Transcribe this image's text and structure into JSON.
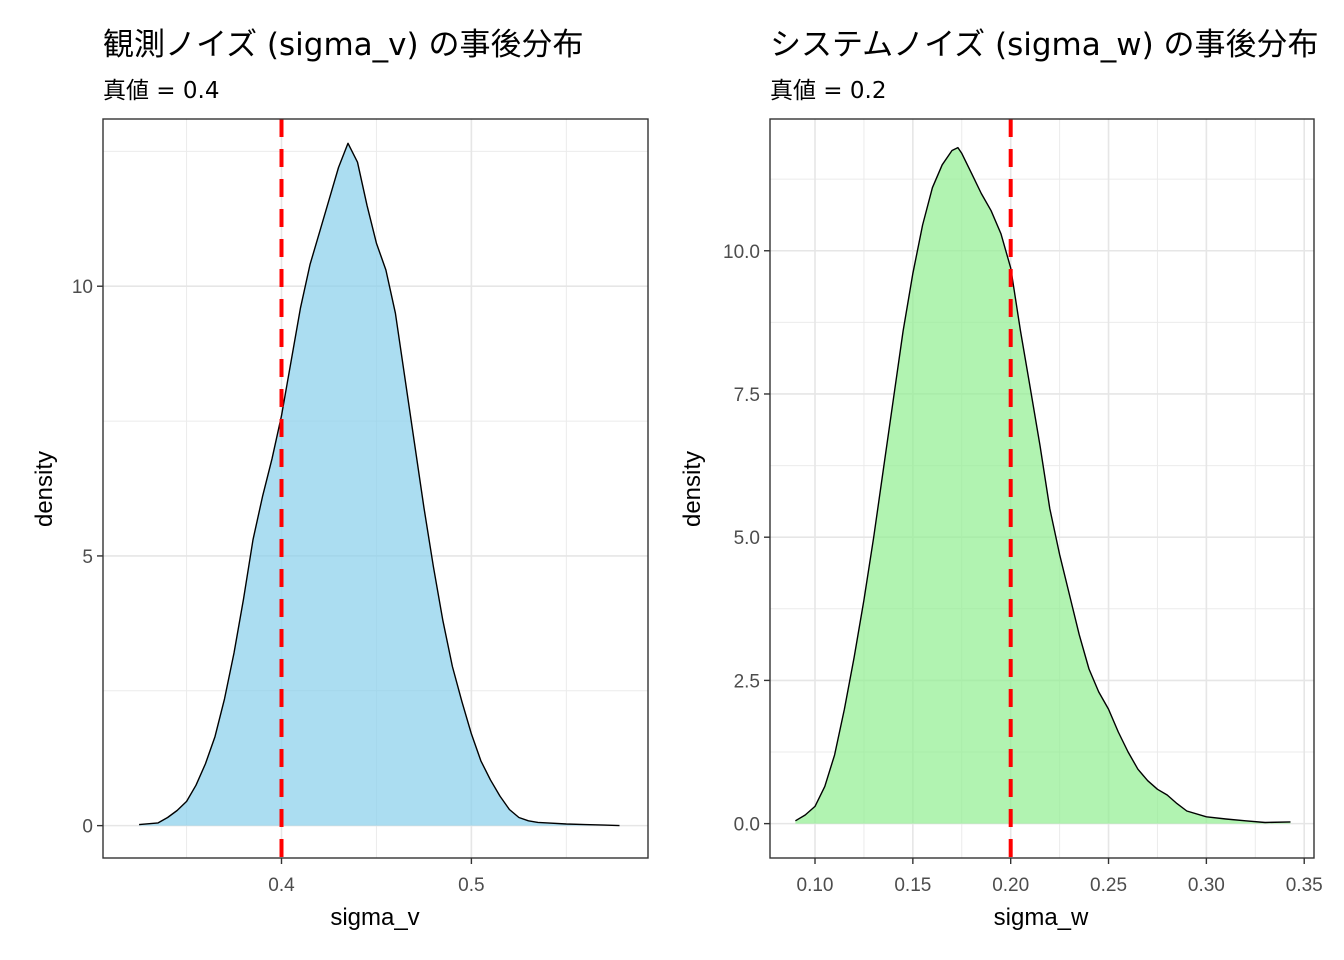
{
  "chart_data": [
    {
      "type": "area",
      "title": "観測ノイズ (sigma_v) の事後分布",
      "subtitle": "真値 = 0.4",
      "xlabel": "sigma_v",
      "ylabel": "density",
      "xlim": [
        0.306,
        0.593
      ],
      "ylim": [
        -0.6,
        13.1
      ],
      "x_ticks": [
        0.4,
        0.5
      ],
      "x_tick_labels": [
        "0.4",
        "0.5"
      ],
      "x_minor": [
        0.35,
        0.45,
        0.55
      ],
      "y_ticks": [
        0,
        5,
        10
      ],
      "y_tick_labels": [
        "0",
        "5",
        "10"
      ],
      "y_minor": [
        2.5,
        7.5,
        12.5
      ],
      "fill_color": "#87ceeb",
      "true_value": 0.4,
      "vline_color": "#ff0000",
      "x": [
        0.325,
        0.335,
        0.34,
        0.345,
        0.35,
        0.355,
        0.36,
        0.365,
        0.37,
        0.375,
        0.38,
        0.385,
        0.39,
        0.395,
        0.4,
        0.405,
        0.41,
        0.415,
        0.42,
        0.425,
        0.43,
        0.435,
        0.44,
        0.445,
        0.45,
        0.455,
        0.46,
        0.465,
        0.47,
        0.475,
        0.48,
        0.485,
        0.49,
        0.495,
        0.5,
        0.505,
        0.51,
        0.515,
        0.52,
        0.525,
        0.53,
        0.535,
        0.54,
        0.55,
        0.56,
        0.57,
        0.578
      ],
      "y": [
        0.02,
        0.05,
        0.15,
        0.28,
        0.45,
        0.75,
        1.15,
        1.65,
        2.35,
        3.2,
        4.2,
        5.3,
        6.1,
        6.8,
        7.6,
        8.6,
        9.6,
        10.4,
        11.0,
        11.6,
        12.2,
        12.65,
        12.3,
        11.5,
        10.8,
        10.3,
        9.5,
        8.3,
        7.1,
        5.9,
        4.8,
        3.8,
        2.95,
        2.3,
        1.7,
        1.2,
        0.85,
        0.55,
        0.3,
        0.15,
        0.09,
        0.06,
        0.05,
        0.03,
        0.02,
        0.01,
        0.0
      ]
    },
    {
      "type": "area",
      "title": "システムノイズ (sigma_w) の事後分布",
      "subtitle": "真値 = 0.2",
      "xlabel": "sigma_w",
      "ylabel": "density",
      "xlim": [
        0.077,
        0.355
      ],
      "ylim": [
        -0.6,
        12.3
      ],
      "x_ticks": [
        0.1,
        0.15,
        0.2,
        0.25,
        0.3,
        0.35
      ],
      "x_tick_labels": [
        "0.10",
        "0.15",
        "0.20",
        "0.25",
        "0.30",
        "0.35"
      ],
      "x_minor": [
        0.125,
        0.175,
        0.225,
        0.275,
        0.325
      ],
      "y_ticks": [
        0,
        2.5,
        5,
        7.5,
        10
      ],
      "y_tick_labels": [
        "0.0",
        "2.5",
        "5.0",
        "7.5",
        "10.0"
      ],
      "y_minor": [
        1.25,
        3.75,
        6.25,
        8.75,
        11.25
      ],
      "fill_color": "#90ee90",
      "true_value": 0.2,
      "vline_color": "#ff0000",
      "x": [
        0.09,
        0.095,
        0.1,
        0.105,
        0.11,
        0.115,
        0.12,
        0.125,
        0.13,
        0.135,
        0.14,
        0.145,
        0.15,
        0.155,
        0.16,
        0.165,
        0.17,
        0.173,
        0.175,
        0.18,
        0.185,
        0.19,
        0.195,
        0.2,
        0.205,
        0.21,
        0.215,
        0.22,
        0.225,
        0.23,
        0.235,
        0.24,
        0.245,
        0.25,
        0.255,
        0.26,
        0.265,
        0.27,
        0.275,
        0.28,
        0.285,
        0.29,
        0.3,
        0.31,
        0.32,
        0.33,
        0.343
      ],
      "y": [
        0.05,
        0.15,
        0.3,
        0.65,
        1.2,
        2.0,
        2.9,
        3.9,
        5.0,
        6.2,
        7.4,
        8.6,
        9.6,
        10.45,
        11.1,
        11.5,
        11.75,
        11.8,
        11.7,
        11.35,
        11.0,
        10.7,
        10.3,
        9.7,
        8.6,
        7.6,
        6.6,
        5.5,
        4.7,
        4.0,
        3.3,
        2.7,
        2.3,
        2.0,
        1.6,
        1.25,
        0.95,
        0.75,
        0.6,
        0.5,
        0.35,
        0.22,
        0.12,
        0.08,
        0.05,
        0.02,
        0.03
      ]
    }
  ]
}
